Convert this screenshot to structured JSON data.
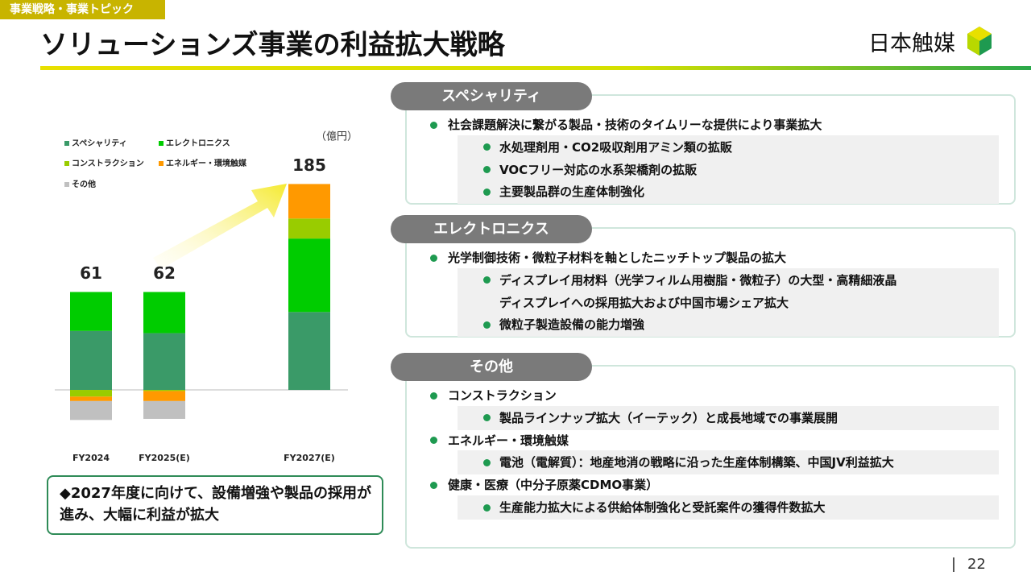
{
  "header": {
    "tag": "事業戦略・事業トピック",
    "title": "ソリューションズ事業の利益拡大戦略",
    "logo": "日本触媒"
  },
  "chart_data": {
    "type": "stacked_bar",
    "unit": "（億円）",
    "categories": [
      "FY2024",
      "FY2025(E)",
      "FY2027(E)"
    ],
    "series": [
      {
        "name": "スペシャリティ",
        "color": "#3a9a68",
        "values": [
          53,
          51,
          70
        ]
      },
      {
        "name": "エレクトロニクス",
        "color": "#00cc00",
        "values": [
          35,
          37,
          66
        ]
      },
      {
        "name": "コンストラクション",
        "color": "#99cc00",
        "values": [
          -6,
          -1,
          18
        ]
      },
      {
        "name": "エネルギー・環境触媒",
        "color": "#ff9900",
        "values": [
          -4,
          -9,
          31
        ]
      },
      {
        "name": "その他",
        "color": "#c0c0c0",
        "values": [
          -17,
          -16,
          0
        ]
      }
    ],
    "totals": [
      61,
      62,
      185
    ],
    "ylim": [
      -30,
      200
    ]
  },
  "summary": "◆2027年度に向けて、設備増強や製品の採用が進み、大幅に利益が拡大",
  "panels": [
    {
      "title": "スペシャリティ",
      "items": [
        {
          "text": "社会課題解決に繋がる製品・技術のタイムリーな提供により事業拡大",
          "subs": [
            "水処理剤用・CO2吸収剤用アミン類の拡販",
            "VOCフリー対応の水系架橋剤の拡販",
            "主要製品群の生産体制強化"
          ]
        }
      ]
    },
    {
      "title": "エレクトロニクス",
      "items": [
        {
          "text": "光学制御技術・微粒子材料を軸としたニッチトップ製品の拡大",
          "subs": [
            [
              "ディスプレイ用材料（光学フィルム用樹脂・微粒子）の大型・高精細液晶",
              "ディスプレイへの採用拡大および中国市場シェア拡大"
            ],
            "微粒子製造設備の能力増強"
          ]
        }
      ]
    },
    {
      "title": "その他",
      "items": [
        {
          "text": "コンストラクション",
          "subs": [
            "製品ラインナップ拡大（イーテック）と成長地域での事業展開"
          ]
        },
        {
          "text": "エネルギー・環境触媒",
          "subs": [
            "電池（電解質）：地産地消の戦略に沿った生産体制構築、中国JV利益拡大"
          ]
        },
        {
          "text": "健康・医療（中分子原薬CDMO事業）",
          "subs": [
            "生産能力拡大による供給体制強化と受託案件の獲得件数拡大"
          ]
        }
      ]
    }
  ],
  "page": "22"
}
